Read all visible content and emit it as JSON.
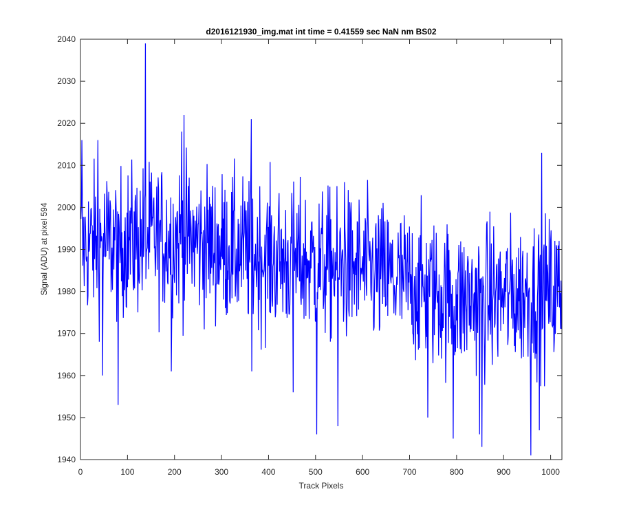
{
  "chart_data": {
    "type": "line",
    "title": "d2016121930_img.mat int time = 0.41559 sec  NaN nm BS02",
    "xlabel": "Track Pixels",
    "ylabel": "Signal (ADU) at pixel 594",
    "xlim": [
      0,
      1024
    ],
    "ylim": [
      1940,
      2040
    ],
    "xticks": [
      0,
      100,
      200,
      300,
      400,
      500,
      600,
      700,
      800,
      900,
      1000
    ],
    "yticks": [
      1940,
      1950,
      1960,
      1970,
      1980,
      1990,
      2000,
      2010,
      2020,
      2030,
      2040
    ],
    "grid": false,
    "legend": "none",
    "series": [
      {
        "color": "#0000ff",
        "n_points": 1024,
        "trend_mean": {
          "x": [
            0,
            200,
            400,
            600,
            800,
            1024
          ],
          "y": [
            1991,
            1993,
            1988,
            1985,
            1978,
            1980
          ]
        },
        "noise_amplitude": 9,
        "extremes": [
          {
            "x": 3,
            "y": 2016
          },
          {
            "x": 37,
            "y": 2016
          },
          {
            "x": 47,
            "y": 1960
          },
          {
            "x": 80,
            "y": 1953
          },
          {
            "x": 138,
            "y": 2039
          },
          {
            "x": 193,
            "y": 1961
          },
          {
            "x": 215,
            "y": 2018
          },
          {
            "x": 220,
            "y": 2022
          },
          {
            "x": 363,
            "y": 2021
          },
          {
            "x": 363,
            "y": 1961
          },
          {
            "x": 452,
            "y": 1956
          },
          {
            "x": 502,
            "y": 1946
          },
          {
            "x": 547,
            "y": 1948
          },
          {
            "x": 561,
            "y": 2006
          },
          {
            "x": 738,
            "y": 1950
          },
          {
            "x": 792,
            "y": 1945
          },
          {
            "x": 848,
            "y": 1946
          },
          {
            "x": 853,
            "y": 1943
          },
          {
            "x": 957,
            "y": 1941
          },
          {
            "x": 975,
            "y": 1947
          },
          {
            "x": 980,
            "y": 2013
          }
        ]
      }
    ]
  }
}
